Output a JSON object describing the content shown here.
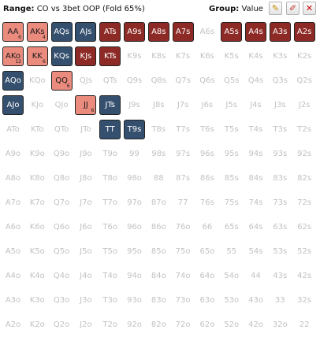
{
  "toolbar": {
    "range_label": "Range:",
    "range_value": "CO vs 3bet OOP (Fold 65%)",
    "group_label": "Group:",
    "group_value": "Value",
    "edit_icon": "pencil-icon",
    "erase_icon": "eraser-icon",
    "clear_icon": "close-icon"
  },
  "colors": {
    "inactive_text": "#c2c2c2",
    "salmon": "#ea8b7e",
    "navy": "#34506e",
    "dark_red": "#8d2a26"
  },
  "matrix": [
    [
      "AA",
      "AKs",
      "AQs",
      "AJs",
      "ATs",
      "A9s",
      "A8s",
      "A7s",
      "A6s",
      "A5s",
      "A4s",
      "A3s",
      "A2s"
    ],
    [
      "AKo",
      "KK",
      "KQs",
      "KJs",
      "KTs",
      "K9s",
      "K8s",
      "K7s",
      "K6s",
      "K5s",
      "K4s",
      "K3s",
      "K2s"
    ],
    [
      "AQo",
      "KQo",
      "QQ",
      "QJs",
      "QTs",
      "Q9s",
      "Q8s",
      "Q7s",
      "Q6s",
      "Q5s",
      "Q4s",
      "Q3s",
      "Q2s"
    ],
    [
      "AJo",
      "KJo",
      "QJo",
      "JJ",
      "JTs",
      "J9s",
      "J8s",
      "J7s",
      "J6s",
      "J5s",
      "J4s",
      "J3s",
      "J2s"
    ],
    [
      "ATo",
      "KTo",
      "QTo",
      "JTo",
      "TT",
      "T9s",
      "T8s",
      "T7s",
      "T6s",
      "T5s",
      "T4s",
      "T3s",
      "T2s"
    ],
    [
      "A9o",
      "K9o",
      "Q9o",
      "J9o",
      "T9o",
      "99",
      "98s",
      "97s",
      "96s",
      "95s",
      "94s",
      "93s",
      "92s"
    ],
    [
      "A8o",
      "K8o",
      "Q8o",
      "J8o",
      "T8o",
      "98o",
      "88",
      "87s",
      "86s",
      "85s",
      "84s",
      "83s",
      "82s"
    ],
    [
      "A7o",
      "K7o",
      "Q7o",
      "J7o",
      "T7o",
      "97o",
      "87o",
      "77",
      "76s",
      "75s",
      "74s",
      "73s",
      "72s"
    ],
    [
      "A6o",
      "K6o",
      "Q6o",
      "J6o",
      "T6o",
      "96o",
      "86o",
      "76o",
      "66",
      "65s",
      "64s",
      "63s",
      "62s"
    ],
    [
      "A5o",
      "K5o",
      "Q5o",
      "J5o",
      "T5o",
      "95o",
      "85o",
      "75o",
      "65o",
      "55",
      "54s",
      "53s",
      "52s"
    ],
    [
      "A4o",
      "K4o",
      "Q4o",
      "J4o",
      "T4o",
      "94o",
      "84o",
      "74o",
      "64o",
      "54o",
      "44",
      "43s",
      "42s"
    ],
    [
      "A3o",
      "K3o",
      "Q3o",
      "J3o",
      "T3o",
      "93o",
      "83o",
      "73o",
      "63o",
      "53o",
      "43o",
      "33",
      "32s"
    ],
    [
      "A2o",
      "K2o",
      "Q2o",
      "J2o",
      "T2o",
      "92o",
      "82o",
      "72o",
      "62o",
      "52o",
      "42o",
      "32o",
      "22"
    ]
  ],
  "selected": {
    "AA": {
      "color": "salmon",
      "count": "6"
    },
    "AKs": {
      "color": "salmon",
      "count": "4"
    },
    "AQs": {
      "color": "navy"
    },
    "AJs": {
      "color": "navy"
    },
    "ATs": {
      "color": "dark_red"
    },
    "A9s": {
      "color": "dark_red"
    },
    "A8s": {
      "color": "dark_red"
    },
    "A7s": {
      "color": "dark_red"
    },
    "A5s": {
      "color": "dark_red"
    },
    "A4s": {
      "color": "dark_red"
    },
    "A3s": {
      "color": "dark_red"
    },
    "A2s": {
      "color": "dark_red"
    },
    "AKo": {
      "color": "salmon",
      "count": "12"
    },
    "KK": {
      "color": "salmon",
      "count": "6"
    },
    "KQs": {
      "color": "navy"
    },
    "KJs": {
      "color": "dark_red"
    },
    "KTs": {
      "color": "dark_red"
    },
    "AQo": {
      "color": "navy"
    },
    "QQ": {
      "color": "salmon",
      "count": "6"
    },
    "AJo": {
      "color": "navy"
    },
    "JJ": {
      "color": "salmon",
      "count": "6"
    },
    "JTs": {
      "color": "navy"
    },
    "TT": {
      "color": "navy"
    },
    "T9s": {
      "color": "navy"
    }
  }
}
